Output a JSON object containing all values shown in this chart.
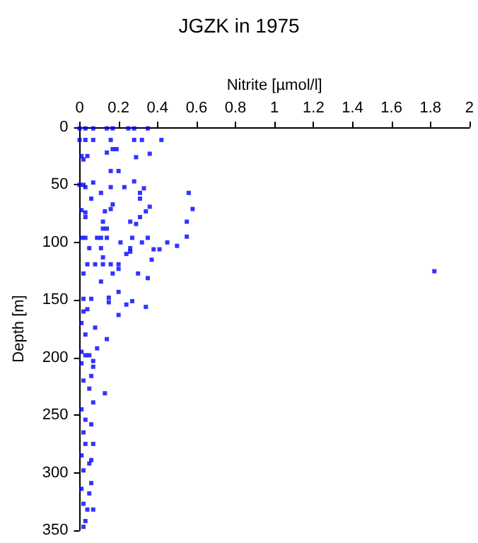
{
  "chart_data": {
    "type": "scatter",
    "title": "JGZK in 1975",
    "xlabel": "Nitrite [µmol/l]",
    "ylabel": "Depth [m]",
    "xlim": [
      0,
      2
    ],
    "xticks": [
      0,
      0.2,
      0.4,
      0.6,
      0.8,
      1,
      1.2,
      1.4,
      1.6,
      1.8,
      2
    ],
    "ylim": [
      350,
      0
    ],
    "yticks": [
      0,
      50,
      100,
      150,
      200,
      250,
      300,
      350
    ],
    "grid": false,
    "marker": "square",
    "series": [
      {
        "color": "#0000ff",
        "x": [
          0,
          0.03,
          0.07,
          0.14,
          0.17,
          0.25,
          0.28,
          0.35,
          0,
          0.03,
          0.07,
          0.16,
          0.28,
          0.32,
          0.42,
          0.17,
          0.19,
          0.14,
          0.01,
          0.04,
          0.02,
          0.29,
          0.36,
          0.16,
          0.2,
          0.28,
          0,
          0.02,
          0.03,
          0.07,
          0.16,
          0.23,
          0.33,
          0.31,
          0.11,
          0.56,
          0.31,
          0.06,
          0.17,
          0.36,
          0.58,
          0.01,
          0.03,
          0.16,
          0.13,
          0.34,
          0.03,
          0.31,
          0.12,
          0.26,
          0.55,
          0.29,
          0.12,
          0.14,
          0.01,
          0.03,
          0.09,
          0.11,
          0.14,
          0.27,
          0.35,
          0.55,
          0.21,
          0.45,
          0.5,
          0.32,
          0.05,
          0.11,
          0.26,
          0.38,
          0.41,
          0.37,
          0.24,
          0.26,
          0.12,
          0.04,
          0.08,
          0.12,
          0.16,
          0.2,
          0.2,
          0.02,
          0.17,
          0.3,
          0.35,
          0.11,
          1.82,
          0.2,
          0.02,
          0.06,
          0.15,
          0.15,
          0.27,
          0.24,
          0.34,
          0.2,
          0.02,
          0.04,
          0.08,
          0.01,
          0.14,
          0.03,
          0.09,
          0.01,
          0.03,
          0.05,
          0.07,
          0.01,
          0.07,
          0.06,
          0.02,
          0.05,
          0.13,
          0.07,
          0.01,
          0.03,
          0.06,
          0.02,
          0.07,
          0.03,
          0.06,
          0.01,
          0.05,
          0.02,
          0.06,
          0.01,
          0.05,
          0.02,
          0.04,
          0.07,
          0.03,
          0.02
        ],
        "values": [
          1,
          1,
          1,
          1,
          1,
          1,
          1,
          1,
          11,
          11,
          11,
          11,
          11,
          11,
          11,
          19,
          19,
          22,
          25,
          25,
          28,
          26,
          23,
          38,
          38,
          47,
          50,
          50,
          52,
          48,
          52,
          52,
          53,
          57,
          57,
          57,
          62,
          62,
          67,
          69,
          71,
          72,
          74,
          71,
          73,
          73,
          78,
          78,
          82,
          82,
          82,
          84,
          88,
          88,
          96,
          96,
          96,
          96,
          96,
          96,
          96,
          95,
          100,
          100,
          103,
          100,
          105,
          105,
          105,
          106,
          106,
          115,
          110,
          108,
          113,
          119,
          119,
          119,
          119,
          119,
          123,
          127,
          127,
          127,
          131,
          134,
          125,
          143,
          149,
          149,
          148,
          152,
          151,
          154,
          156,
          163,
          160,
          158,
          174,
          170,
          184,
          180,
          192,
          195,
          198,
          198,
          203,
          205,
          208,
          216,
          220,
          227,
          231,
          239,
          245,
          254,
          258,
          265,
          275,
          275,
          289,
          285,
          292,
          298,
          309,
          314,
          318,
          327,
          332,
          332,
          342,
          347
        ]
      }
    ]
  }
}
